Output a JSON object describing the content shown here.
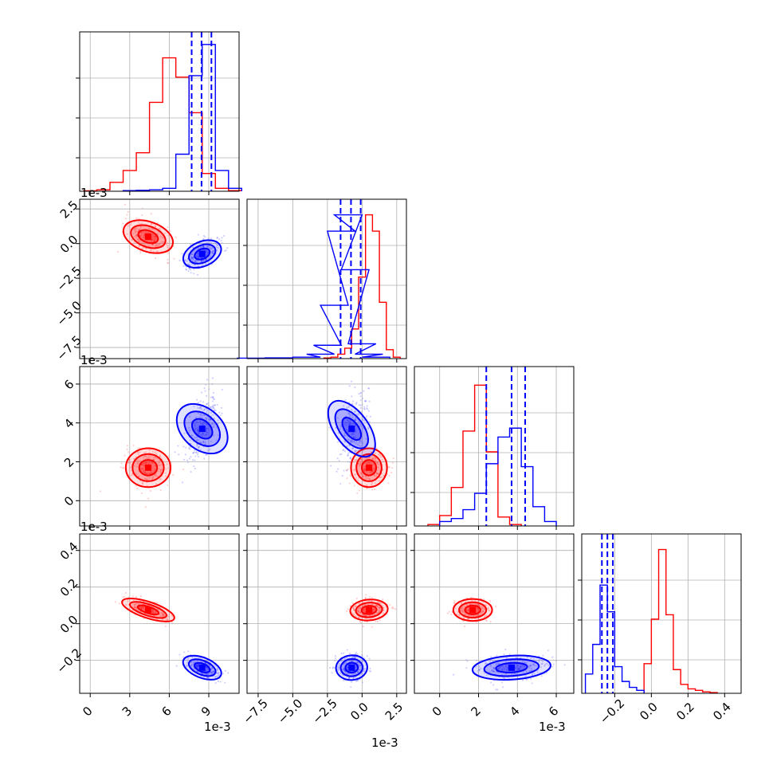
{
  "colors": {
    "series_a": "#ff0000",
    "series_b": "#0000ff",
    "grid": "#b0b0b0",
    "axes": "#000000"
  },
  "panels": {
    "p00": {
      "offset": "1e-3"
    },
    "p10": {
      "offset": "1e-3"
    },
    "p20": {
      "offset": "1e-3"
    },
    "p30_x": {
      "offset": "1e-3"
    },
    "p31_x": {
      "offset": "1e-3"
    },
    "p32_x": {
      "offset": "1e-3"
    }
  },
  "chart_data": {
    "type": "scatter",
    "subtype": "corner-plot",
    "grid": true,
    "legend": "none",
    "variables": [
      {
        "ticks": [
          0,
          3,
          6,
          9
        ],
        "tick_labels": [
          "0",
          "3",
          "6",
          "9"
        ],
        "offset_text": "1e-3",
        "range": [
          -0.8,
          11.3
        ]
      },
      {
        "ticks": [
          -7.5,
          -5.0,
          -2.5,
          0.0,
          2.5
        ],
        "tick_labels": [
          "−7.5",
          "−5.0",
          "−2.5",
          "0.0",
          "2.5"
        ],
        "offset_text": "1e-3",
        "range": [
          -8.3,
          3.2
        ]
      },
      {
        "ticks": [
          0,
          2,
          4,
          6
        ],
        "tick_labels": [
          "0",
          "2",
          "4",
          "6"
        ],
        "offset_text": "1e-3",
        "range": [
          -1.3,
          6.9
        ]
      },
      {
        "ticks": [
          -0.2,
          0.0,
          0.2,
          0.4
        ],
        "tick_labels": [
          "−0.2",
          "0.0",
          "0.2",
          "0.4"
        ],
        "offset_text": "",
        "range": [
          -0.38,
          0.49
        ]
      }
    ],
    "series": [
      {
        "color": "#ff0000",
        "mean": [
          4.4,
          0.5,
          1.7,
          0.075
        ],
        "sd": [
          0.85,
          0.65,
          0.5,
          0.03
        ],
        "median_lines": [],
        "hist": [
          [
            [
              0,
              0.003
            ],
            [
              1,
              0.01
            ],
            [
              2,
              0.06
            ],
            [
              3,
              0.14
            ],
            [
              4,
              0.26
            ],
            [
              5,
              0.6
            ],
            [
              6,
              0.9
            ],
            [
              7,
              0.77
            ],
            [
              8,
              0.53
            ],
            [
              9,
              0.12
            ],
            [
              10,
              0.02
            ],
            [
              11,
              0.004
            ]
          ],
          [
            [
              -2.5,
              0.004
            ],
            [
              -2,
              0.01
            ],
            [
              -1.5,
              0.03
            ],
            [
              -1,
              0.07
            ],
            [
              -0.5,
              0.2
            ],
            [
              0,
              0.55
            ],
            [
              0.5,
              0.97
            ],
            [
              1,
              0.86
            ],
            [
              1.5,
              0.38
            ],
            [
              2,
              0.06
            ],
            [
              2.5,
              0.01
            ]
          ],
          [
            [
              -0.3,
              0.01
            ],
            [
              0.3,
              0.07
            ],
            [
              0.9,
              0.26
            ],
            [
              1.5,
              0.64
            ],
            [
              2.1,
              0.95
            ],
            [
              2.7,
              0.5
            ],
            [
              3.3,
              0.06
            ],
            [
              3.9,
              0.01
            ]
          ],
          [
            [
              -0.02,
              0.2
            ],
            [
              0.02,
              0.5
            ],
            [
              0.06,
              0.97
            ],
            [
              0.1,
              0.53
            ],
            [
              0.14,
              0.16
            ],
            [
              0.18,
              0.06
            ],
            [
              0.22,
              0.03
            ],
            [
              0.26,
              0.02
            ],
            [
              0.3,
              0.01
            ],
            [
              0.34,
              0.005
            ]
          ]
        ]
      },
      {
        "color": "#0000ff",
        "mean": [
          8.5,
          -0.75,
          3.7,
          -0.24
        ],
        "sd": [
          0.65,
          0.55,
          0.95,
          0.035
        ],
        "median_lines": [
          [
            7.7,
            8.45,
            9.2
          ],
          [
            -1.55,
            -0.8,
            -0.1
          ],
          [
            2.4,
            3.7,
            4.4
          ],
          [
            -0.27,
            -0.24,
            -0.21
          ]
        ],
        "hist": [
          [
            [
              3,
              0.004
            ],
            [
              4,
              0.006
            ],
            [
              5,
              0.01
            ],
            [
              6,
              0.02
            ],
            [
              7,
              0.25
            ],
            [
              8,
              0.78
            ],
            [
              9,
              0.99
            ],
            [
              10,
              0.14
            ],
            [
              11,
              0.02
            ]
          ],
          [
            [
              -8,
              0.003
            ],
            [
              -6,
              0.005
            ],
            [
              -4,
              0.01
            ],
            [
              -3,
              0.03
            ],
            [
              -2.5,
              0.09
            ],
            [
              -2,
              0.36
            ],
            [
              -1.5,
              0.86
            ],
            [
              -1,
              0.97
            ],
            [
              -0.5,
              0.6
            ],
            [
              0,
              0.1
            ],
            [
              0.5,
              0.03
            ],
            [
              1,
              0.01
            ]
          ],
          [
            [
              0.3,
              0.03
            ],
            [
              0.9,
              0.05
            ],
            [
              1.5,
              0.11
            ],
            [
              2.1,
              0.22
            ],
            [
              2.7,
              0.42
            ],
            [
              3.3,
              0.6
            ],
            [
              3.9,
              0.66
            ],
            [
              4.5,
              0.4
            ],
            [
              5.1,
              0.13
            ],
            [
              5.7,
              0.03
            ]
          ],
          [
            [
              -0.34,
              0.13
            ],
            [
              -0.3,
              0.33
            ],
            [
              -0.26,
              0.73
            ],
            [
              -0.22,
              0.55
            ],
            [
              -0.18,
              0.18
            ],
            [
              -0.14,
              0.08
            ],
            [
              -0.1,
              0.04
            ],
            [
              -0.06,
              0.02
            ]
          ]
        ]
      }
    ]
  }
}
